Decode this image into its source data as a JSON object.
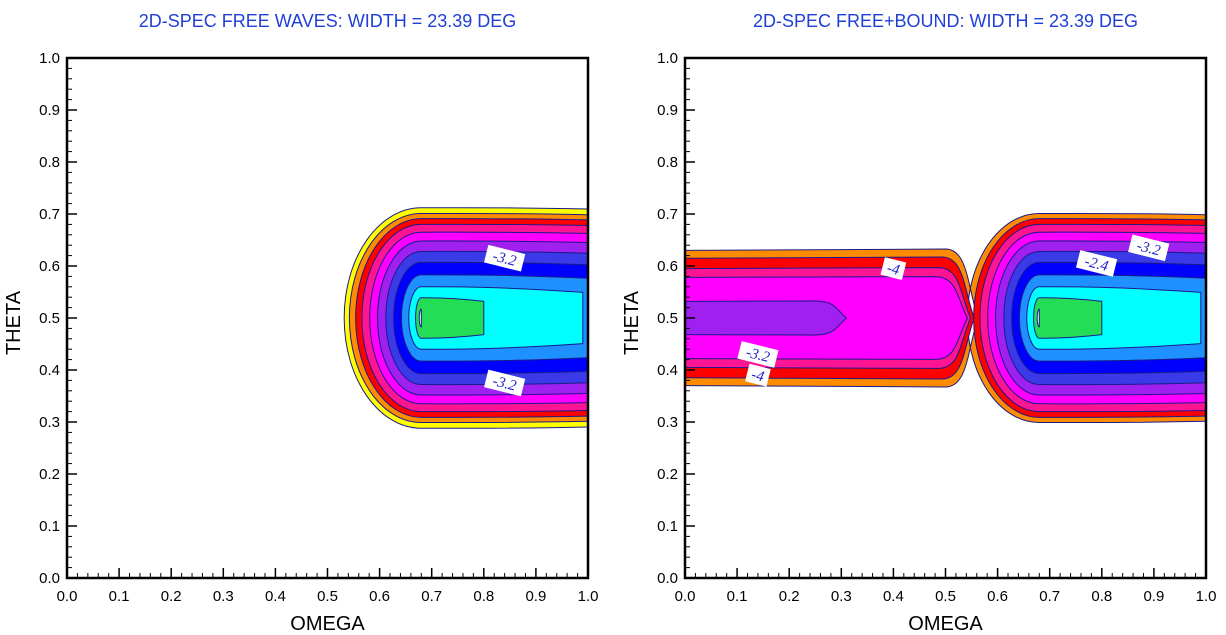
{
  "chart_data": [
    {
      "type": "contour",
      "title": "2D-SPEC FREE WAVES: WIDTH = 23.39  DEG",
      "xlabel": "OMEGA",
      "ylabel": "THETA",
      "xlim": [
        0.0,
        1.0
      ],
      "ylim": [
        0.0,
        1.0
      ],
      "xticks": [
        "0.0",
        "0.1",
        "0.2",
        "0.3",
        "0.4",
        "0.5",
        "0.6",
        "0.7",
        "0.8",
        "0.9",
        "1.0"
      ],
      "yticks": [
        "0.0",
        "0.1",
        "0.2",
        "0.3",
        "0.4",
        "0.5",
        "0.6",
        "0.7",
        "0.8",
        "0.9",
        "1.0"
      ],
      "peak": {
        "omega": 0.68,
        "theta": 0.5
      },
      "fill_colors": [
        "#ffff00",
        "#ff8c00",
        "#ff0000",
        "#ff1493",
        "#ff00ff",
        "#a020f0",
        "#3a3ae8",
        "#0000ff",
        "#1e90ff",
        "#00ffff",
        "#22dd55",
        "#ffffff"
      ],
      "contour_labels": [
        {
          "text": "-3.2",
          "omega": 0.84,
          "theta": 0.615
        },
        {
          "text": "-3.2",
          "omega": 0.84,
          "theta": 0.375
        }
      ]
    },
    {
      "type": "contour",
      "title": "2D-SPEC FREE+BOUND: WIDTH = 23.39  DEG",
      "xlabel": "OMEGA",
      "ylabel": "THETA",
      "xlim": [
        0.0,
        1.0
      ],
      "ylim": [
        0.0,
        1.0
      ],
      "xticks": [
        "0.0",
        "0.1",
        "0.2",
        "0.3",
        "0.4",
        "0.5",
        "0.6",
        "0.7",
        "0.8",
        "0.9",
        "1.0"
      ],
      "yticks": [
        "0.0",
        "0.1",
        "0.2",
        "0.3",
        "0.4",
        "0.5",
        "0.6",
        "0.7",
        "0.8",
        "0.9",
        "1.0"
      ],
      "peak": {
        "omega": 0.68,
        "theta": 0.5
      },
      "fill_colors": [
        "#ff8c00",
        "#ff0000",
        "#ff1493",
        "#ff00ff",
        "#a020f0",
        "#3a3ae8",
        "#0000ff",
        "#1e90ff",
        "#00ffff",
        "#22dd55",
        "#ffffff"
      ],
      "contour_labels": [
        {
          "text": "-4",
          "omega": 0.4,
          "theta": 0.595
        },
        {
          "text": "-3.2",
          "omega": 0.89,
          "theta": 0.635
        },
        {
          "text": "-2.4",
          "omega": 0.79,
          "theta": 0.605
        },
        {
          "text": "-3.2",
          "omega": 0.14,
          "theta": 0.43
        },
        {
          "text": "-4",
          "omega": 0.14,
          "theta": 0.39
        }
      ]
    }
  ]
}
